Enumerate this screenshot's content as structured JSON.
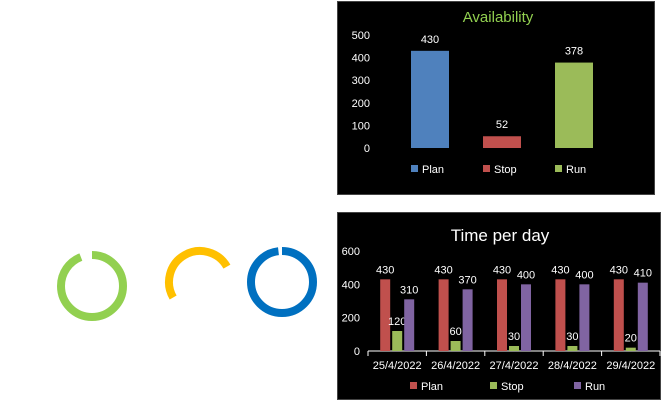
{
  "colors": {
    "plan": "#4f81bd",
    "stop": "#c0504d",
    "run": "#9bbb59",
    "run2": "#8064a2",
    "ring_green": "#92d050",
    "ring_orange": "#ffc000",
    "ring_blue": "#0070c0"
  },
  "gauges": [
    {
      "color": "ring_green",
      "fraction": 0.94
    },
    {
      "color": "ring_orange",
      "fraction": 0.5
    },
    {
      "color": "ring_blue",
      "fraction": 0.98
    }
  ],
  "chart_data": [
    {
      "type": "bar",
      "title": "Availability",
      "categories": [
        "Plan",
        "Stop",
        "Run"
      ],
      "values": [
        430,
        52,
        378
      ],
      "ylim": [
        0,
        500
      ],
      "yticks": [
        0,
        100,
        200,
        300,
        400,
        500
      ],
      "grid": false,
      "legend": "bottom"
    },
    {
      "type": "bar",
      "title": "Time per day",
      "categories": [
        "25/4/2022",
        "26/4/2022",
        "27/4/2022",
        "28/4/2022",
        "29/4/2022"
      ],
      "series": [
        {
          "name": "Plan",
          "values": [
            430,
            430,
            430,
            430,
            430
          ]
        },
        {
          "name": "Stop",
          "values": [
            120,
            60,
            30,
            30,
            20
          ]
        },
        {
          "name": "Run",
          "values": [
            310,
            370,
            400,
            400,
            410
          ]
        }
      ],
      "ylim": [
        0,
        600
      ],
      "yticks": [
        0,
        200,
        400,
        600
      ],
      "grid": false,
      "legend": "bottom"
    }
  ]
}
